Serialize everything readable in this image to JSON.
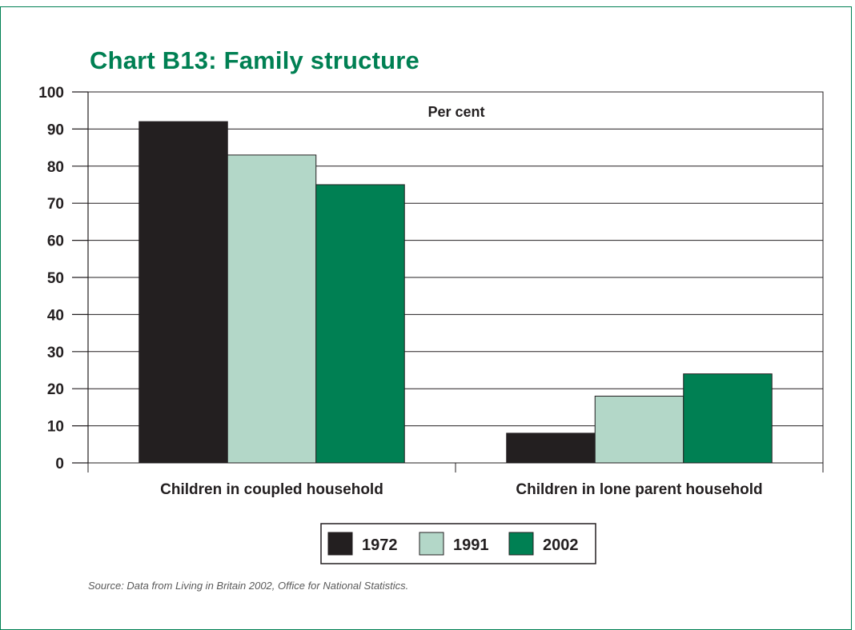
{
  "title": "Chart B13: Family structure",
  "source": "Source: Data from Living in Britain 2002, Office for National Statistics.",
  "colors": {
    "accent": "#008053",
    "series": [
      "#231f20",
      "#b3d7c8",
      "#008053"
    ]
  },
  "chart_data": {
    "type": "bar",
    "title": "Chart B13: Family structure",
    "ylabel": "Per cent",
    "xlabel": "",
    "categories": [
      "Children in coupled household",
      "Children in lone parent household"
    ],
    "series": [
      {
        "name": "1972",
        "values": [
          92,
          8
        ]
      },
      {
        "name": "1991",
        "values": [
          83,
          18
        ]
      },
      {
        "name": "2002",
        "values": [
          75,
          24
        ]
      }
    ],
    "ylim": [
      0,
      100
    ],
    "yticks": [
      0,
      10,
      20,
      30,
      40,
      50,
      60,
      70,
      80,
      90,
      100
    ],
    "grid": true,
    "legend": "bottom"
  }
}
